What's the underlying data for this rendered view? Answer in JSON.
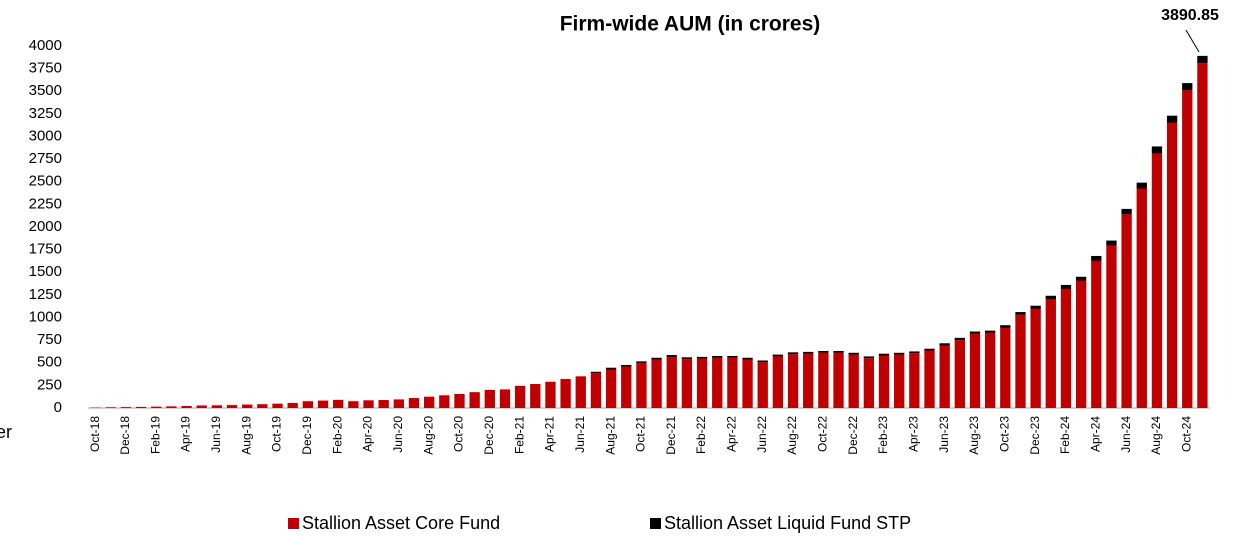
{
  "chart_data": {
    "type": "bar",
    "stacked": true,
    "title": "Firm-wide AUM (in crores)",
    "categories": [
      "Oct-18",
      null,
      "Dec-18",
      null,
      "Feb-19",
      null,
      "Apr-19",
      null,
      "Jun-19",
      null,
      "Aug-19",
      null,
      "Oct-19",
      null,
      "Dec-19",
      null,
      "Feb-20",
      null,
      "Apr-20",
      null,
      "Jun-20",
      null,
      "Aug-20",
      null,
      "Oct-20",
      null,
      "Dec-20",
      null,
      "Feb-21",
      null,
      "Apr-21",
      null,
      "Jun-21",
      null,
      "Aug-21",
      null,
      "Oct-21",
      null,
      "Dec-21",
      null,
      "Feb-22",
      null,
      "Apr-22",
      null,
      "Jun-22",
      null,
      "Aug-22",
      null,
      "Oct-22",
      null,
      "Dec-22",
      null,
      "Feb-23",
      null,
      "Apr-23",
      null,
      "Jun-23",
      null,
      "Aug-23",
      null,
      "Oct-23",
      null,
      "Dec-23",
      null,
      "Feb-24",
      null,
      "Apr-24",
      null,
      "Jun-24",
      null,
      "Aug-24",
      null,
      "Oct-24",
      null
    ],
    "series": [
      {
        "name": "Stallion Asset Core Fund",
        "color": "#c00000",
        "values": [
          5,
          8,
          10,
          12,
          15,
          18,
          22,
          28,
          30,
          32,
          38,
          42,
          48,
          55,
          75,
          82,
          90,
          75,
          85,
          88,
          95,
          110,
          125,
          140,
          155,
          175,
          200,
          205,
          245,
          265,
          290,
          320,
          350,
          385,
          425,
          455,
          495,
          535,
          560,
          540,
          545,
          555,
          555,
          535,
          505,
          570,
          595,
          600,
          610,
          610,
          590,
          550,
          580,
          590,
          605,
          635,
          690,
          750,
          820,
          830,
          885,
          1030,
          1095,
          1200,
          1315,
          1405,
          1625,
          1795,
          2140,
          2425,
          2810,
          3150,
          3510,
          3810.85
        ]
      },
      {
        "name": "Stallion Asset Liquid Fund STP",
        "color": "#000000",
        "values": [
          0,
          0,
          0,
          0,
          0,
          0,
          0,
          0,
          0,
          0,
          0,
          0,
          0,
          0,
          0,
          0,
          0,
          0,
          0,
          0,
          0,
          0,
          0,
          0,
          0,
          0,
          0,
          0,
          0,
          0,
          0,
          0,
          0,
          15,
          20,
          20,
          20,
          20,
          25,
          20,
          20,
          20,
          20,
          20,
          20,
          20,
          20,
          20,
          20,
          20,
          20,
          20,
          20,
          20,
          20,
          20,
          25,
          25,
          25,
          25,
          30,
          30,
          35,
          40,
          45,
          45,
          55,
          55,
          60,
          65,
          80,
          80,
          80,
          80
        ]
      }
    ],
    "annotations": [
      {
        "text": "3890.85"
      },
      {
        "text": "er"
      }
    ],
    "ylim": [
      0,
      4000
    ],
    "yticks": [
      0,
      250,
      500,
      750,
      1000,
      1250,
      1500,
      1750,
      2000,
      2250,
      2500,
      2750,
      3000,
      3250,
      3500,
      3750,
      4000
    ],
    "grid": false,
    "legend": "bottom"
  }
}
